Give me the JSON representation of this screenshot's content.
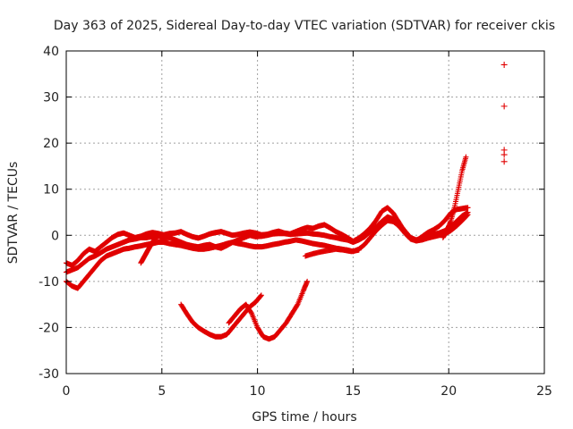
{
  "chart_data": {
    "type": "scatter",
    "title": "Day 363 of 2025, Sidereal Day-to-day VTEC variation (SDTVAR) for receiver ckis",
    "xlabel": "GPS time / hours",
    "ylabel": "SDTVAR / TECUs",
    "xlim": [
      0,
      25
    ],
    "ylim": [
      -30,
      40
    ],
    "xticks": [
      0,
      5,
      10,
      15,
      20,
      25
    ],
    "yticks": [
      -30,
      -20,
      -10,
      0,
      10,
      20,
      30,
      40
    ],
    "grid": true,
    "marker": "+",
    "color": "#e00000",
    "series": [
      {
        "name": "track-1",
        "x": [
          0.0,
          0.3,
          0.6,
          0.9,
          1.2,
          1.5,
          1.8,
          2.1,
          2.4,
          2.7,
          3.0,
          3.3,
          3.6,
          3.9,
          4.2,
          4.5,
          4.8,
          5.1,
          5.4,
          5.7,
          6.0,
          6.3,
          6.6,
          6.9,
          7.2,
          7.5,
          7.8,
          8.1,
          8.4,
          8.7,
          9.0,
          9.3,
          9.6,
          9.9,
          10.2,
          10.5,
          10.8,
          11.1,
          11.4,
          11.7,
          12.0,
          12.3,
          12.6,
          12.9,
          13.2,
          13.5,
          13.8,
          14.1,
          14.4,
          14.7,
          15.0,
          15.3,
          15.6,
          15.9,
          16.2,
          16.5,
          16.8,
          17.1,
          17.4,
          17.7,
          18.0,
          18.3,
          18.6,
          18.9,
          19.2,
          19.5,
          19.8,
          20.1,
          20.4,
          20.7,
          21.0
        ],
        "y": [
          -6,
          -6.5,
          -5.5,
          -4,
          -3,
          -3.5,
          -2.5,
          -1.5,
          -0.5,
          0.2,
          0.5,
          0,
          -0.5,
          -0.2,
          0.3,
          0.6,
          0.4,
          0.1,
          0.4,
          0.5,
          0.8,
          0.2,
          -0.3,
          -0.6,
          -0.2,
          0.3,
          0.6,
          0.8,
          0.4,
          0,
          0.2,
          0.5,
          0.7,
          0.5,
          0.1,
          0.2,
          0.6,
          0.9,
          0.5,
          0.3,
          0.8,
          1.3,
          1.7,
          1.5,
          2,
          2.3,
          1.6,
          0.8,
          0.2,
          -0.5,
          -1.3,
          -0.6,
          0.4,
          1.6,
          3.2,
          5.2,
          6,
          4.8,
          2.8,
          0.8,
          -0.6,
          -1.2,
          -0.3,
          0.6,
          1.2,
          2,
          3.2,
          4.8,
          5.6,
          5.8,
          6
        ]
      },
      {
        "name": "track-2",
        "x": [
          0.0,
          0.3,
          0.6,
          0.9,
          1.2,
          1.5,
          1.8,
          2.1,
          2.4,
          2.7,
          3.0,
          3.3,
          3.6,
          3.9,
          4.2,
          4.5,
          4.8,
          5.1,
          5.4,
          5.7,
          6.0,
          6.3,
          6.6,
          6.9,
          7.2,
          7.5,
          7.8,
          8.1,
          8.4,
          8.7,
          9.0,
          9.3,
          9.6,
          9.9,
          10.2,
          10.5,
          10.8,
          11.1,
          11.4,
          11.7,
          12.0,
          12.3,
          12.6,
          12.9,
          13.2,
          13.5,
          13.8,
          14.1,
          14.4,
          14.7,
          15.0,
          15.3,
          15.6,
          15.9,
          16.2,
          16.5,
          16.8,
          17.1,
          17.4,
          17.7,
          18.0,
          18.3,
          18.6,
          18.9,
          19.2,
          19.5,
          19.8,
          20.1,
          20.4,
          20.7,
          21.0
        ],
        "y": [
          -8,
          -7.5,
          -7,
          -6,
          -5,
          -4.5,
          -3.8,
          -3,
          -2.5,
          -2,
          -1.5,
          -1,
          -0.8,
          -0.5,
          -0.5,
          -0.3,
          -0.2,
          -0.5,
          -0.5,
          -1,
          -1.5,
          -2,
          -2.3,
          -2.5,
          -2.2,
          -2,
          -2.5,
          -2.8,
          -2.2,
          -1.5,
          -1,
          -0.5,
          0,
          -0.3,
          -0.2,
          0,
          0.3,
          0.4,
          0.4,
          0.2,
          0.3,
          0.4,
          0.5,
          0.3,
          0.2,
          0,
          -0.3,
          -0.5,
          -0.8,
          -1,
          -1.5,
          -1,
          -0.3,
          0.8,
          1.8,
          3,
          4,
          3.5,
          2.5,
          1,
          -0.5,
          -1,
          -0.6,
          -0.2,
          0.2,
          0.5,
          1,
          1.8,
          3,
          4.2,
          5
        ]
      },
      {
        "name": "track-3",
        "x": [
          0.0,
          0.3,
          0.6,
          0.9,
          1.2,
          1.5,
          1.8,
          2.1,
          2.4,
          2.7,
          3.0,
          3.3,
          3.6,
          3.9,
          4.2,
          4.5,
          4.8,
          5.1,
          5.4,
          5.7,
          6.0,
          6.3,
          6.6,
          6.9,
          7.2,
          7.5,
          7.8,
          8.1,
          8.4,
          8.7,
          9.0,
          9.3,
          9.6,
          9.9,
          10.2,
          10.5,
          10.8,
          11.1,
          11.4,
          11.7,
          12.0,
          12.3,
          12.6,
          12.9,
          13.2,
          13.5,
          13.8,
          14.1,
          14.4,
          14.7,
          15.0,
          15.3,
          15.6,
          15.9,
          16.2,
          16.5,
          16.8,
          17.1,
          17.4,
          17.7,
          18.0,
          18.3,
          18.6,
          18.9,
          19.2,
          19.5,
          19.8,
          20.1,
          20.4,
          20.7,
          21.0
        ],
        "y": [
          -10,
          -11,
          -11.5,
          -10,
          -8.5,
          -7,
          -5.5,
          -4.5,
          -4,
          -3.5,
          -3,
          -2.8,
          -2.5,
          -2.3,
          -2,
          -1.8,
          -1.5,
          -1.5,
          -1.8,
          -2,
          -2.2,
          -2.5,
          -2.8,
          -3,
          -3,
          -2.8,
          -2.5,
          -2.2,
          -1.8,
          -1.5,
          -1.8,
          -2,
          -2.3,
          -2.5,
          -2.5,
          -2.3,
          -2,
          -1.8,
          -1.5,
          -1.3,
          -1,
          -1.2,
          -1.5,
          -1.8,
          -2,
          -2.2,
          -2.5,
          -2.8,
          -3,
          -3.2,
          -3.5,
          -3,
          -2,
          -0.5,
          1,
          2.2,
          3.2,
          3,
          2,
          0.5,
          -0.8,
          -1.2,
          -1,
          -0.6,
          -0.3,
          0,
          0.3,
          1,
          2,
          3.2,
          4.5
        ]
      },
      {
        "name": "spur-early",
        "x": [
          3.9,
          4.1,
          4.3,
          4.5,
          4.7,
          4.9
        ],
        "y": [
          -6,
          -4.5,
          -3,
          -1.5,
          -0.5,
          0
        ]
      },
      {
        "name": "dip-a",
        "x": [
          6.0,
          6.3,
          6.6,
          6.9,
          7.2,
          7.5,
          7.8,
          8.1,
          8.4,
          8.7,
          9.0,
          9.3,
          9.6,
          9.9,
          10.2
        ],
        "y": [
          -15,
          -17,
          -18.8,
          -20,
          -20.8,
          -21.5,
          -22,
          -22,
          -21.5,
          -20,
          -18.5,
          -17,
          -15.5,
          -14.5,
          -13
        ]
      },
      {
        "name": "dip-b",
        "x": [
          8.5,
          8.8,
          9.1,
          9.4,
          9.7,
          10.0,
          10.3,
          10.6,
          10.9,
          11.2,
          11.5,
          11.8,
          12.1,
          12.4,
          12.6
        ],
        "y": [
          -19,
          -17.5,
          -16,
          -15,
          -17,
          -20,
          -22,
          -22.5,
          -22,
          -20.5,
          -19,
          -17,
          -15,
          -12,
          -10
        ]
      },
      {
        "name": "spur-mid",
        "x": [
          12.5,
          12.9,
          13.3,
          13.7,
          14.1,
          14.5,
          14.9,
          15.3
        ],
        "y": [
          -4.5,
          -4,
          -3.6,
          -3.3,
          -3,
          -3.2,
          -3.5,
          -3.2
        ]
      },
      {
        "name": "spur-late",
        "x": [
          19.7,
          19.9,
          20.1,
          20.3,
          20.5,
          20.7,
          20.9
        ],
        "y": [
          -0.5,
          1,
          3,
          6,
          10,
          14,
          17
        ]
      },
      {
        "name": "outliers",
        "x": [
          22.9,
          22.9,
          22.9,
          22.9,
          22.9
        ],
        "y": [
          37,
          28,
          18.5,
          17.5,
          16
        ]
      }
    ]
  }
}
